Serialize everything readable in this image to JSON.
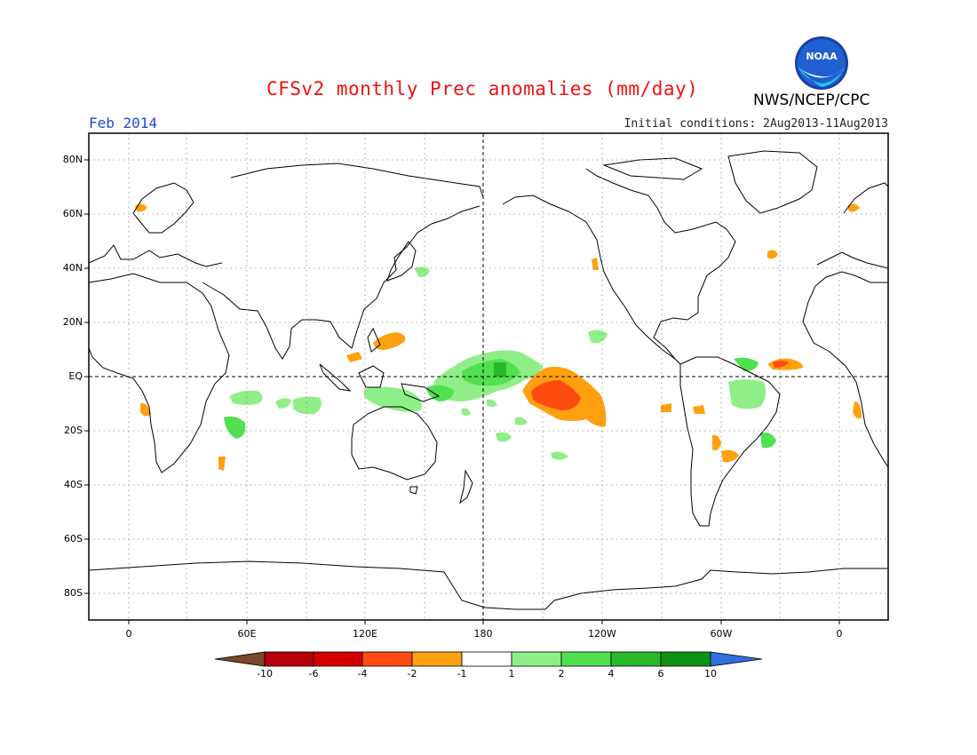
{
  "header": {
    "title": "CFSv2 monthly Prec anomalies (mm/day)",
    "agency": "NWS/NCEP/CPC",
    "logo_text": "NOAA",
    "month": "Feb 2014",
    "initial_conditions": "Initial conditions: 2Aug2013-11Aug2013"
  },
  "axes": {
    "lat_labels": [
      "80N",
      "60N",
      "40N",
      "20N",
      "EQ",
      "20S",
      "40S",
      "60S",
      "80S"
    ],
    "lon_labels": [
      "0",
      "60E",
      "120E",
      "180",
      "120W",
      "60W",
      "0"
    ]
  },
  "colorbar": {
    "labels": [
      "-10",
      "-6",
      "-4",
      "-2",
      "-1",
      "1",
      "2",
      "4",
      "6",
      "10"
    ],
    "colors": [
      "#7a4a2a",
      "#b8000a",
      "#d40000",
      "#ff4a10",
      "#ffa010",
      "#ffffff",
      "#90ee88",
      "#50e050",
      "#28b828",
      "#109010",
      "#2f6fdf"
    ]
  },
  "colors": {
    "title": "#ee1111",
    "month": "#2244dd",
    "positive_light": "#90ee88",
    "positive_mid": "#50e050",
    "positive_dark": "#28b828",
    "negative_light": "#ffa010",
    "negative_mid": "#ff4a10"
  }
}
